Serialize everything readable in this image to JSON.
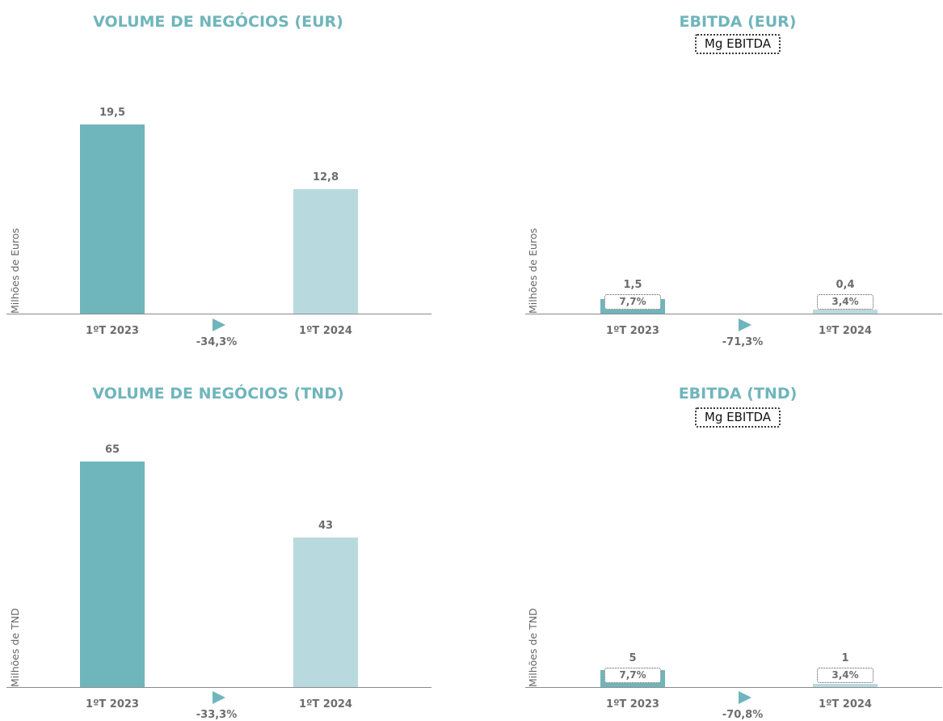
{
  "chart_data": [
    {
      "type": "bar",
      "title": "VOLUME DE NEGÓCIOS (EUR)",
      "ylabel": "Milhões de Euros",
      "categories": [
        "1ºT 2023",
        "1ºT 2024"
      ],
      "values": [
        19.5,
        12.8
      ],
      "value_labels": [
        "19,5",
        "12,8"
      ],
      "growth_label": "-34,3%",
      "colors": [
        "#6fb5bc",
        "#b8dade"
      ]
    },
    {
      "type": "bar",
      "title": "EBITDA (EUR)",
      "legend": "Mg EBITDA",
      "ylabel": "Milhões de Euros",
      "categories": [
        "1ºT 2023",
        "1ºT 2024"
      ],
      "values": [
        1.5,
        0.4
      ],
      "value_labels": [
        "1,5",
        "0,4"
      ],
      "margin_labels": [
        "7,7%",
        "3,4%"
      ],
      "growth_label": "-71,3%",
      "colors": [
        "#6fb5bc",
        "#b8dade"
      ]
    },
    {
      "type": "bar",
      "title": "VOLUME DE NEGÓCIOS (TND)",
      "ylabel": "Milhões de TND",
      "categories": [
        "1ºT 2023",
        "1ºT 2024"
      ],
      "values": [
        65,
        43
      ],
      "value_labels": [
        "65",
        "43"
      ],
      "growth_label": "-33,3%",
      "colors": [
        "#6fb5bc",
        "#b8dade"
      ]
    },
    {
      "type": "bar",
      "title": "EBITDA (TND)",
      "legend": "Mg EBITDA",
      "ylabel": "Milhões de TND",
      "categories": [
        "1ºT 2023",
        "1ºT 2024"
      ],
      "values": [
        5,
        1
      ],
      "value_labels": [
        "5",
        "1"
      ],
      "margin_labels": [
        "7,7%",
        "3,4%"
      ],
      "growth_label": "-70,8%",
      "colors": [
        "#6fb5bc",
        "#b8dade"
      ]
    }
  ]
}
